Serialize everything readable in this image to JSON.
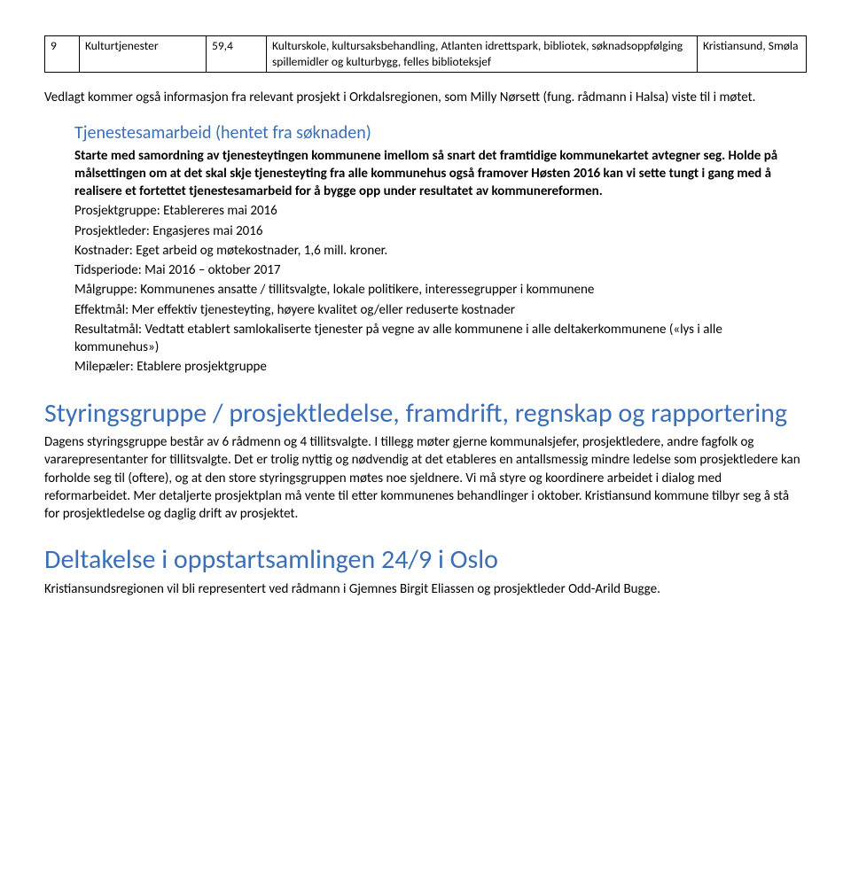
{
  "table": {
    "row": {
      "num": "9",
      "name": "Kulturtjenester",
      "value": "59,4",
      "desc": "Kulturskole, kultursaksbehandling, Atlanten idrettspark, bibliotek, søknadsoppfølging spillemidler og kulturbygg, felles biblioteksjef",
      "loc": "Kristiansund, Smøla"
    }
  },
  "intro": "Vedlagt kommer også informasjon fra relevant prosjekt i Orkdalsregionen, som Milly Nørsett (fung. rådmann i Halsa) viste til i møtet.",
  "block": {
    "heading": "Tjenestesamarbeid (hentet fra søknaden)",
    "bold1": "Starte med samordning av tjenesteytingen kommunene imellom så snart det framtidige kommunekartet avtegner seg. Holde på målsettingen om at det skal skje tjenesteyting fra alle kommunehus også framover Høsten 2016 kan vi sette tungt i gang med å realisere et fortettet tjenestesamarbeid for å bygge opp under resultatet av kommunereformen.",
    "l1": "Prosjektgruppe: Etablereres mai 2016",
    "l2": "Prosjektleder: Engasjeres mai 2016",
    "l3": "Kostnader: Eget arbeid og møtekostnader, 1,6 mill. kroner.",
    "l4": "Tidsperiode: Mai 2016 – oktober 2017",
    "l5": "Målgruppe: Kommunenes ansatte / tillitsvalgte, lokale politikere, interessegrupper i kommunene",
    "l6": "Effektmål: Mer effektiv tjenesteyting, høyere kvalitet og/eller reduserte kostnader",
    "l7": "Resultatmål: Vedtatt etablert samlokaliserte tjenester på vegne av alle kommunene i alle deltakerkommunene («lys i alle kommunehus»)",
    "l8": "Milepæler: Etablere prosjektgruppe"
  },
  "sec1": {
    "heading": "Styringsgruppe / prosjektledelse, framdrift, regnskap og rapportering",
    "body": "Dagens styringsgruppe består av 6 rådmenn og 4 tillitsvalgte. I tillegg møter gjerne kommunalsjefer, prosjektledere, andre fagfolk og vararepresentanter for tillitsvalgte. Det er trolig nyttig og nødvendig at det etableres en antallsmessig mindre ledelse som prosjektledere kan forholde seg til (oftere), og at den store styringsgruppen møtes noe sjeldnere. Vi må styre og koordinere arbeidet i dialog med reformarbeidet. Mer detaljerte prosjektplan må vente til etter kommunenes behandlinger i oktober. Kristiansund kommune tilbyr seg å stå for prosjektledelse og daglig drift av prosjektet."
  },
  "sec2": {
    "heading": "Deltakelse i oppstartsamlingen 24/9 i Oslo",
    "body": "Kristiansundsregionen vil bli representert ved rådmann i Gjemnes Birgit Eliassen og prosjektleder Odd-Arild Bugge."
  }
}
